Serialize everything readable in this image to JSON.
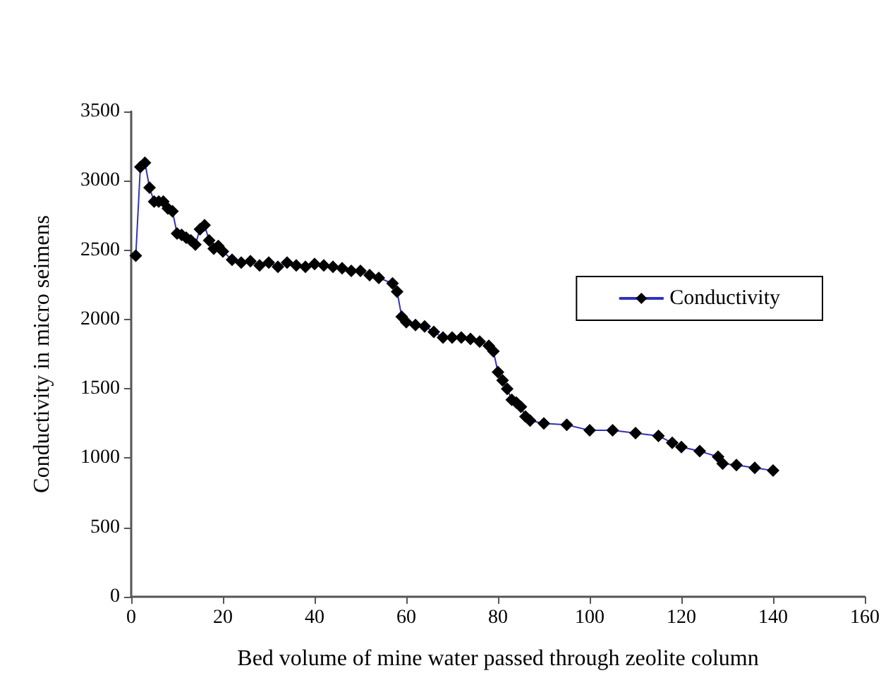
{
  "chart_data": {
    "type": "line",
    "xlabel": "Bed volume of mine water passed through zeolite column",
    "ylabel": "Conductivity in micro seimens",
    "x": [
      1,
      2,
      3,
      4,
      5,
      6,
      7,
      8,
      9,
      10,
      11,
      12,
      13,
      14,
      15,
      16,
      17,
      18,
      19,
      20,
      22,
      24,
      26,
      28,
      30,
      32,
      34,
      36,
      38,
      40,
      42,
      44,
      46,
      48,
      50,
      52,
      54,
      57,
      58,
      59,
      60,
      62,
      64,
      66,
      68,
      70,
      72,
      74,
      76,
      78,
      79,
      80,
      81,
      82,
      83,
      84,
      85,
      86,
      87,
      90,
      95,
      100,
      105,
      110,
      115,
      118,
      120,
      124,
      128,
      129,
      132,
      136,
      140
    ],
    "series": [
      {
        "name": "Conductivity",
        "color": "#000000",
        "values": [
          2460,
          3100,
          3130,
          2950,
          2850,
          2850,
          2850,
          2800,
          2780,
          2620,
          2610,
          2590,
          2570,
          2540,
          2650,
          2680,
          2570,
          2510,
          2530,
          2490,
          2430,
          2410,
          2420,
          2390,
          2410,
          2380,
          2410,
          2390,
          2380,
          2400,
          2390,
          2380,
          2370,
          2350,
          2350,
          2320,
          2300,
          2260,
          2200,
          2020,
          1980,
          1960,
          1950,
          1910,
          1870,
          1870,
          1870,
          1860,
          1840,
          1810,
          1770,
          1620,
          1560,
          1500,
          1420,
          1400,
          1370,
          1300,
          1270,
          1250,
          1240,
          1200,
          1200,
          1180,
          1160,
          1110,
          1080,
          1050,
          1010,
          960,
          950,
          930,
          910
        ]
      }
    ],
    "xlim": [
      0,
      160
    ],
    "xticks": [
      0,
      20,
      40,
      60,
      80,
      100,
      120,
      140,
      160
    ],
    "ylim": [
      0,
      3500
    ],
    "yticks": [
      0,
      500,
      1000,
      1500,
      2000,
      2500,
      3000,
      3500
    ],
    "grid": false,
    "legend": "right",
    "marker": "diamond",
    "line_style": "solid"
  }
}
